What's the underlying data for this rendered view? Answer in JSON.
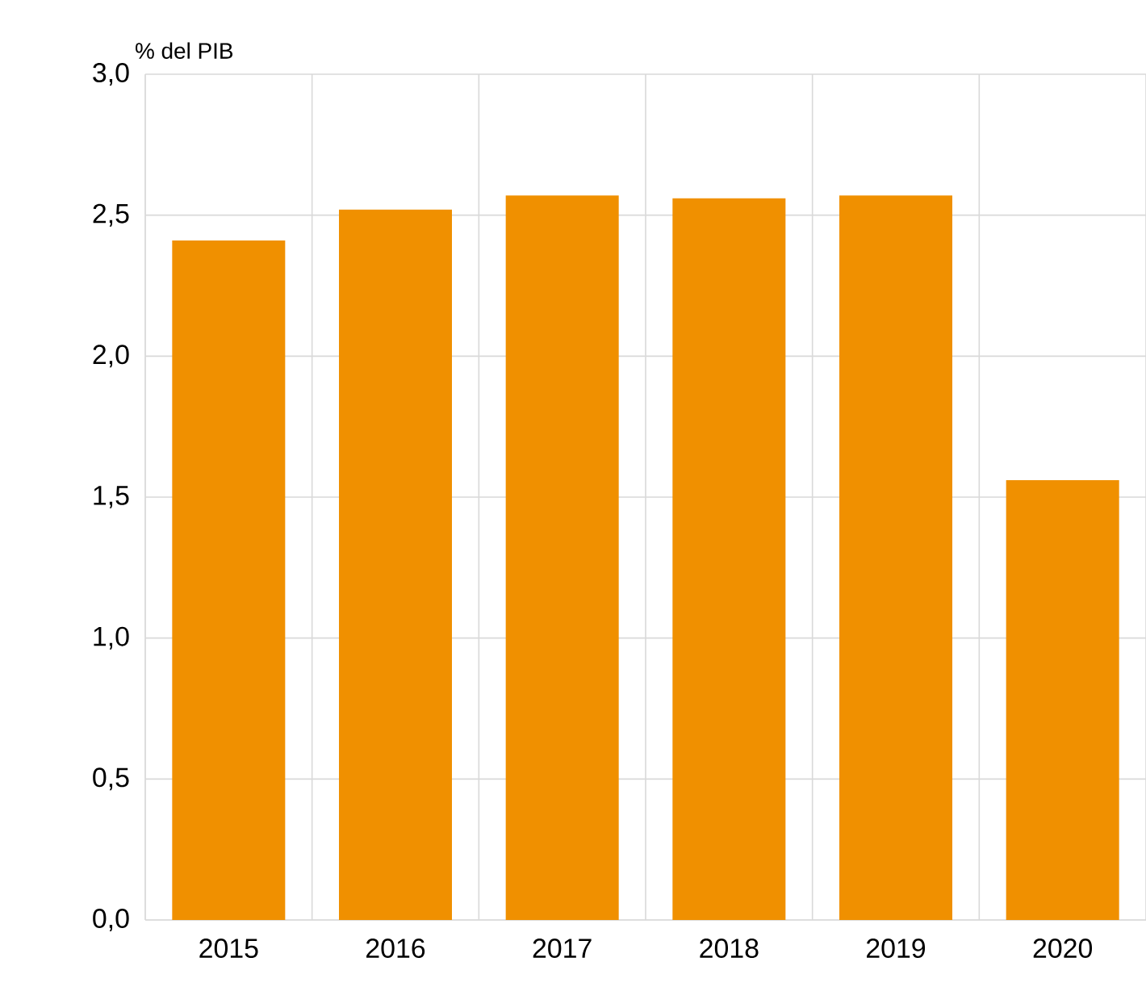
{
  "chart_data": {
    "type": "bar",
    "ylabel": "% del PIB",
    "categories": [
      "2015",
      "2016",
      "2017",
      "2018",
      "2019",
      "2020"
    ],
    "values": [
      2.41,
      2.52,
      2.57,
      2.56,
      2.57,
      1.56
    ],
    "color": "#f09000",
    "ylim": [
      0,
      3
    ],
    "yticks": [
      {
        "value": 0,
        "label": "0,0"
      },
      {
        "value": 0.5,
        "label": "0,5"
      },
      {
        "value": 1,
        "label": "1,0"
      },
      {
        "value": 1.5,
        "label": "1,5"
      },
      {
        "value": 2,
        "label": "2,0"
      },
      {
        "value": 2.5,
        "label": "2,5"
      },
      {
        "value": 3,
        "label": "3,0"
      }
    ],
    "grid": true
  }
}
